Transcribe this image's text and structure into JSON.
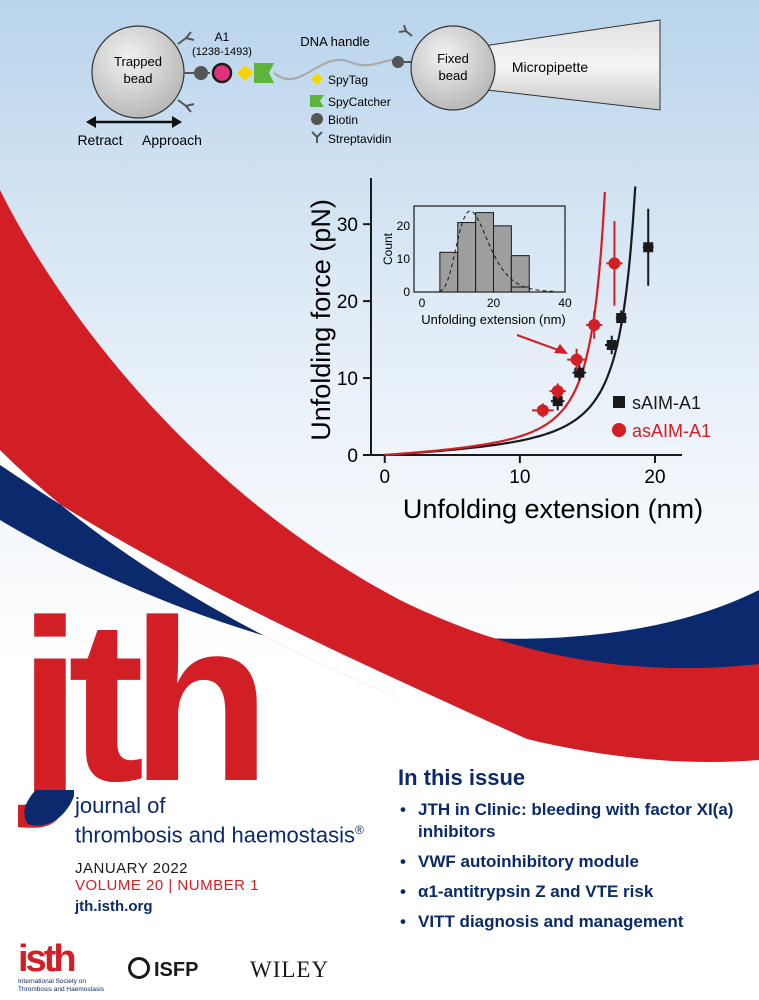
{
  "diagram": {
    "trapped_bead": "Trapped\nbead",
    "a1_label": "A1",
    "a1_range": "(1238-1493)",
    "dna_handle": "DNA handle",
    "fixed_bead": "Fixed\nbead",
    "micropipette": "Micropipette",
    "retract": "Retract",
    "approach": "Approach",
    "legend": [
      {
        "label": "SpyTag",
        "icon": "yellow-diamond-icon",
        "color": "#f5d400"
      },
      {
        "label": "SpyCatcher",
        "icon": "green-flag-icon",
        "color": "#5db33b"
      },
      {
        "label": "Biotin",
        "icon": "gray-circle-icon",
        "color": "#555555"
      },
      {
        "label": "Streptavidin",
        "icon": "streptavidin-y-icon",
        "color": "#555555"
      }
    ]
  },
  "chart_data": [
    {
      "type": "scatter",
      "xlabel": "Unfolding extension (nm)",
      "ylabel": "Unfolding force (pN)",
      "xlim": [
        -0.5,
        22
      ],
      "ylim": [
        0,
        36
      ],
      "xticks": [
        "0",
        "10",
        "20"
      ],
      "yticks": [
        "0",
        "10",
        "20",
        "30"
      ],
      "legend_position": "bottom-right",
      "series": [
        {
          "name": "sAIM-A1",
          "color": "#1a1a1a",
          "marker": "square",
          "x": [
            12.8,
            14.4,
            16.8,
            17.5,
            19.5
          ],
          "y": [
            7.0,
            10.7,
            14.3,
            17.8,
            27.0
          ],
          "xerr": [
            0.5,
            0.5,
            0.5,
            0.4,
            0.4
          ],
          "yerr": [
            1.2,
            1.0,
            1.2,
            1.0,
            5.0
          ]
        },
        {
          "name": "asAIM-A1",
          "color": "#d21f26",
          "marker": "circle",
          "x": [
            11.7,
            12.8,
            14.2,
            15.5,
            17.0
          ],
          "y": [
            5.8,
            8.3,
            12.4,
            16.9,
            24.9
          ],
          "xerr": [
            0.8,
            0.6,
            0.7,
            0.6,
            0.6
          ],
          "yerr": [
            0.9,
            1.0,
            1.4,
            1.8,
            5.5
          ]
        }
      ]
    },
    {
      "type": "bar",
      "xlabel": "Unfolding extension (nm)",
      "ylabel": "Count",
      "xlim": [
        0,
        40
      ],
      "ylim": [
        0,
        26
      ],
      "xticks": [
        "0",
        "20",
        "40"
      ],
      "yticks": [
        "0",
        "10",
        "20"
      ],
      "bin_edges": [
        5,
        10,
        15,
        20,
        25,
        30
      ],
      "values": [
        12,
        21,
        24,
        20,
        11
      ]
    }
  ],
  "masthead": {
    "logo": "jth",
    "name_line1": "journal of",
    "name_line2": "thrombosis and haemostasis",
    "registered": "®",
    "issue_date": "JANUARY 2022",
    "volume": "VOLUME 20 |  NUMBER 1",
    "url": "jth.isth.org"
  },
  "toc": {
    "heading": "In this issue",
    "items": [
      "JTH in Clinic: bleeding with factor XI(a) inhibitors",
      "VWF autoinhibitory module",
      "α1-antitrypsin Z and VTE risk",
      "VITT diagnosis and management"
    ]
  },
  "publishers": {
    "isth_name": "isth",
    "isth_subtitle_1": "International Society on",
    "isth_subtitle_2": "Thrombosis and Haemostasis",
    "isfp": "ISFP",
    "wiley": "WILEY"
  },
  "colors": {
    "red": "#d21f26",
    "navy": "#0b2a6e",
    "sky_top": "#b7d3ec",
    "bead_gray": "#cfcfcf"
  }
}
